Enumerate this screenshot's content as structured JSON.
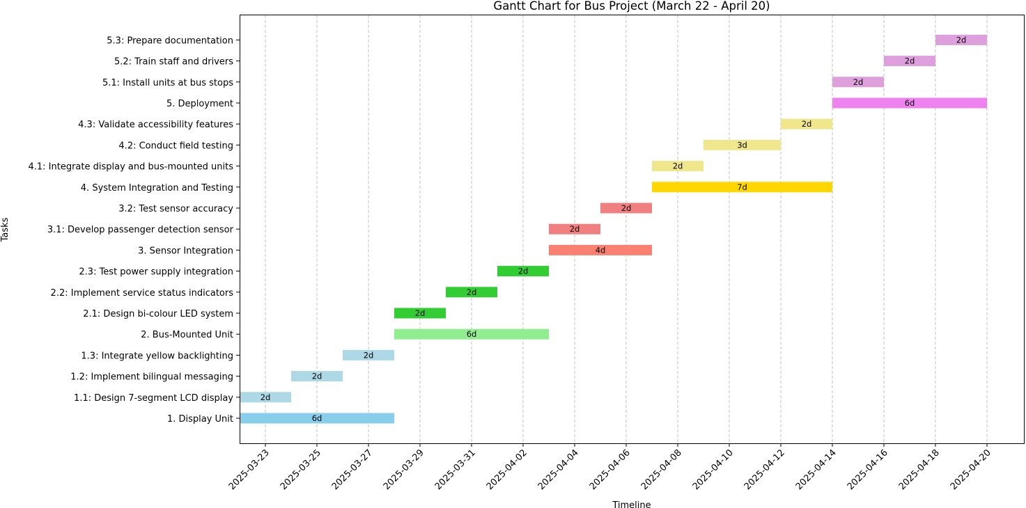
{
  "chart_data": {
    "type": "bar",
    "orientation": "horizontal-gantt",
    "title": "Gantt Chart for Bus Project (March 22 - April 20)",
    "xlabel": "Timeline",
    "ylabel": "Tasks",
    "xlim": [
      "2025-03-22",
      "2025-04-21"
    ],
    "grid": "x-dashed",
    "x_ticks": [
      "2025-03-23",
      "2025-03-25",
      "2025-03-27",
      "2025-03-29",
      "2025-03-31",
      "2025-04-02",
      "2025-04-04",
      "2025-04-06",
      "2025-04-08",
      "2025-04-10",
      "2025-04-12",
      "2025-04-14",
      "2025-04-16",
      "2025-04-18",
      "2025-04-20"
    ],
    "tasks": [
      {
        "name": "1. Display Unit",
        "start": "2025-03-22",
        "end": "2025-03-28",
        "label": "6d",
        "color": "#87CEEB"
      },
      {
        "name": "1.1: Design 7-segment LCD display",
        "start": "2025-03-22",
        "end": "2025-03-24",
        "label": "2d",
        "color": "#ADD8E6"
      },
      {
        "name": "1.2: Implement bilingual messaging",
        "start": "2025-03-24",
        "end": "2025-03-26",
        "label": "2d",
        "color": "#ADD8E6"
      },
      {
        "name": "1.3: Integrate yellow backlighting",
        "start": "2025-03-26",
        "end": "2025-03-28",
        "label": "2d",
        "color": "#ADD8E6"
      },
      {
        "name": "2. Bus-Mounted Unit",
        "start": "2025-03-28",
        "end": "2025-04-03",
        "label": "6d",
        "color": "#90EE90"
      },
      {
        "name": "2.1: Design bi-colour LED system",
        "start": "2025-03-28",
        "end": "2025-03-30",
        "label": "2d",
        "color": "#32CD32"
      },
      {
        "name": "2.2: Implement service status indicators",
        "start": "2025-03-30",
        "end": "2025-04-01",
        "label": "2d",
        "color": "#32CD32"
      },
      {
        "name": "2.3: Test power supply integration",
        "start": "2025-04-01",
        "end": "2025-04-03",
        "label": "2d",
        "color": "#32CD32"
      },
      {
        "name": "3. Sensor Integration",
        "start": "2025-04-03",
        "end": "2025-04-07",
        "label": "4d",
        "color": "#FA8072"
      },
      {
        "name": "3.1: Develop passenger detection sensor",
        "start": "2025-04-03",
        "end": "2025-04-05",
        "label": "2d",
        "color": "#F08080"
      },
      {
        "name": "3.2: Test sensor accuracy",
        "start": "2025-04-05",
        "end": "2025-04-07",
        "label": "2d",
        "color": "#F08080"
      },
      {
        "name": "4. System Integration and Testing",
        "start": "2025-04-07",
        "end": "2025-04-14",
        "label": "7d",
        "color": "#FFD700"
      },
      {
        "name": "4.1: Integrate display and bus-mounted units",
        "start": "2025-04-07",
        "end": "2025-04-09",
        "label": "2d",
        "color": "#F0E68C"
      },
      {
        "name": "4.2: Conduct field testing",
        "start": "2025-04-09",
        "end": "2025-04-12",
        "label": "3d",
        "color": "#F0E68C"
      },
      {
        "name": "4.3: Validate accessibility features",
        "start": "2025-04-12",
        "end": "2025-04-14",
        "label": "2d",
        "color": "#F0E68C"
      },
      {
        "name": "5. Deployment",
        "start": "2025-04-14",
        "end": "2025-04-20",
        "label": "6d",
        "color": "#EE82EE"
      },
      {
        "name": "5.1: Install units at bus stops",
        "start": "2025-04-14",
        "end": "2025-04-16",
        "label": "2d",
        "color": "#DDA0DD"
      },
      {
        "name": "5.2: Train staff and drivers",
        "start": "2025-04-16",
        "end": "2025-04-18",
        "label": "2d",
        "color": "#DDA0DD"
      },
      {
        "name": "5.3: Prepare documentation",
        "start": "2025-04-18",
        "end": "2025-04-20",
        "label": "2d",
        "color": "#DDA0DD"
      }
    ]
  }
}
